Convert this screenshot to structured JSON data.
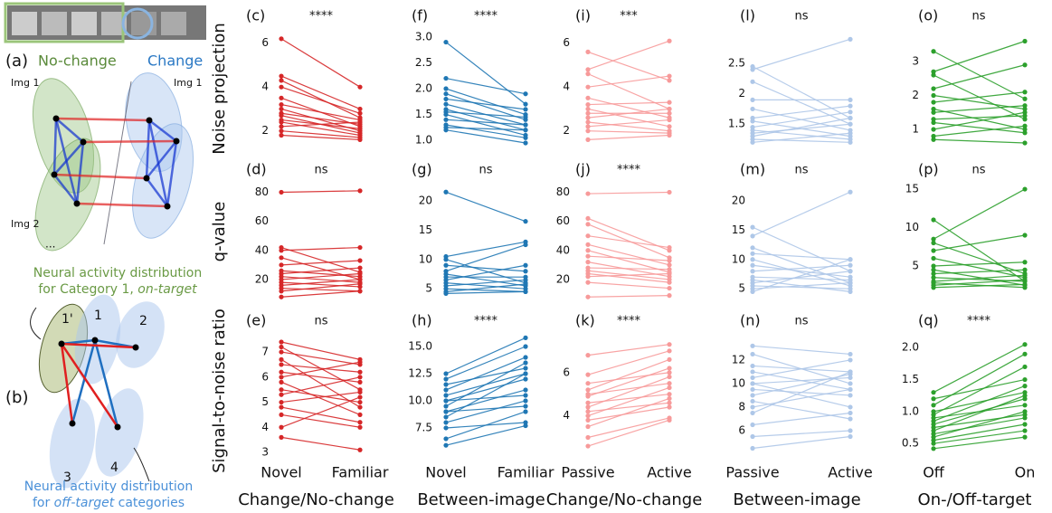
{
  "diagram": {
    "label_a": "(a)",
    "no_change": "No-change",
    "change": "Change",
    "img1_left": "Img 1",
    "img1_right": "Img 1",
    "img2": "Img 2",
    "ellipsis": "...",
    "on_target_line1": "Neural activity distribution",
    "on_target_line2_prefix": "for Category 1, ",
    "on_target_line2_emph": "on-target",
    "label_b": "(b)",
    "node_1p": "1'",
    "node_1": "1",
    "node_2": "2",
    "node_3": "3",
    "node_4": "4",
    "off_target_line1": "Neural activity distribution",
    "off_target_line2_prefix": "for ",
    "off_target_line2_emph": "off-target",
    "off_target_line2_suffix": " categories"
  },
  "chart_data": [
    {
      "type": "paired",
      "panel": "(c)",
      "significance": "****",
      "ylabel": "Noise projection",
      "color": "#d62728",
      "ylim": [
        1.45,
        6.4
      ],
      "yticks": [
        2,
        4,
        6
      ],
      "pairs": [
        [
          6.2,
          4.0
        ],
        [
          4.5,
          3.0
        ],
        [
          4.3,
          2.6
        ],
        [
          4.0,
          2.8
        ],
        [
          3.5,
          2.2
        ],
        [
          3.2,
          2.5
        ],
        [
          3.0,
          2.0
        ],
        [
          2.8,
          2.3
        ],
        [
          2.7,
          1.9
        ],
        [
          2.5,
          2.1
        ],
        [
          2.4,
          1.8
        ],
        [
          2.2,
          2.4
        ],
        [
          2.0,
          1.7
        ],
        [
          1.8,
          1.6
        ]
      ]
    },
    {
      "type": "paired",
      "panel": "(f)",
      "significance": "****",
      "color": "#1f77b4",
      "ylim": [
        0.95,
        3.05
      ],
      "yticks": [
        {
          "value": 1,
          "label": "1.0"
        },
        {
          "value": 1.5,
          "label": "1.5"
        },
        {
          "value": 2,
          "label": "2.0"
        },
        {
          "value": 2.5,
          "label": "2.5"
        },
        {
          "value": 3,
          "label": "3.0"
        }
      ],
      "pairs": [
        [
          2.9,
          1.7
        ],
        [
          2.2,
          1.9
        ],
        [
          2.0,
          1.5
        ],
        [
          1.9,
          1.4
        ],
        [
          1.8,
          1.6
        ],
        [
          1.7,
          1.3
        ],
        [
          1.6,
          1.2
        ],
        [
          1.55,
          1.45
        ],
        [
          1.5,
          1.1
        ],
        [
          1.4,
          1.3
        ],
        [
          1.3,
          1.05
        ],
        [
          1.25,
          1.2
        ],
        [
          1.2,
          0.95
        ]
      ]
    },
    {
      "type": "paired",
      "panel": "(i)",
      "significance": "***",
      "color": "#f79a9a",
      "ylim": [
        1.45,
        6.4
      ],
      "yticks": [
        2,
        4,
        6
      ],
      "pairs": [
        [
          5.6,
          4.3
        ],
        [
          4.8,
          6.1
        ],
        [
          4.6,
          3.0
        ],
        [
          4.0,
          4.5
        ],
        [
          3.5,
          2.6
        ],
        [
          3.2,
          3.3
        ],
        [
          3.0,
          2.2
        ],
        [
          2.8,
          2.8
        ],
        [
          2.6,
          3.0
        ],
        [
          2.4,
          2.0
        ],
        [
          2.2,
          2.5
        ],
        [
          2.0,
          1.9
        ],
        [
          1.6,
          1.8
        ]
      ]
    },
    {
      "type": "paired",
      "panel": "(l)",
      "significance": "ns",
      "color": "#aec7e8",
      "ylim": [
        1.19,
        2.98
      ],
      "yticks": [
        1.5,
        2,
        2.5
      ],
      "pairs": [
        [
          2.45,
          1.6
        ],
        [
          2.4,
          2.9
        ],
        [
          2.2,
          1.5
        ],
        [
          1.9,
          1.9
        ],
        [
          1.75,
          1.4
        ],
        [
          1.6,
          1.8
        ],
        [
          1.55,
          1.3
        ],
        [
          1.45,
          1.7
        ],
        [
          1.4,
          1.25
        ],
        [
          1.35,
          1.5
        ],
        [
          1.3,
          1.6
        ],
        [
          1.25,
          1.2
        ],
        [
          1.2,
          1.35
        ]
      ]
    },
    {
      "type": "paired",
      "panel": "(o)",
      "significance": "ns",
      "color": "#2ca02c",
      "ylim": [
        0.6,
        3.8
      ],
      "yticks": [
        1,
        2,
        3
      ],
      "pairs": [
        [
          3.3,
          1.9
        ],
        [
          2.7,
          3.6
        ],
        [
          2.6,
          1.3
        ],
        [
          2.2,
          2.9
        ],
        [
          2.0,
          1.6
        ],
        [
          1.8,
          2.1
        ],
        [
          1.6,
          1.0
        ],
        [
          1.5,
          1.7
        ],
        [
          1.3,
          1.4
        ],
        [
          1.2,
          0.9
        ],
        [
          1.0,
          1.5
        ],
        [
          0.8,
          1.1
        ],
        [
          0.7,
          0.6
        ]
      ]
    },
    {
      "type": "paired",
      "panel": "(d)",
      "significance": "ns",
      "ylabel": "q-value",
      "color": "#d62728",
      "ylim": [
        10,
        89
      ],
      "yticks": [
        20,
        40,
        60,
        80
      ],
      "pairs": [
        [
          80,
          81
        ],
        [
          42,
          25
        ],
        [
          40,
          42
        ],
        [
          35,
          20
        ],
        [
          30,
          33
        ],
        [
          26,
          22
        ],
        [
          24,
          28
        ],
        [
          22,
          18
        ],
        [
          20,
          24
        ],
        [
          18,
          15
        ],
        [
          16,
          20
        ],
        [
          14,
          12
        ],
        [
          12,
          17
        ],
        [
          8,
          12
        ]
      ]
    },
    {
      "type": "paired",
      "panel": "(g)",
      "significance": "ns",
      "color": "#1f77b4",
      "ylim": [
        4.1,
        23.7
      ],
      "yticks": [
        5,
        10,
        15,
        20
      ],
      "pairs": [
        [
          21.5,
          16.5
        ],
        [
          10.5,
          13
        ],
        [
          10,
          6
        ],
        [
          9,
          8
        ],
        [
          8,
          12.5
        ],
        [
          7.5,
          5.5
        ],
        [
          7,
          7
        ],
        [
          6.5,
          9
        ],
        [
          6,
          5
        ],
        [
          5.5,
          6.5
        ],
        [
          5,
          4.5
        ],
        [
          4.5,
          5.8
        ],
        [
          4.2,
          4.5
        ]
      ]
    },
    {
      "type": "paired",
      "panel": "(j)",
      "significance": "****",
      "color": "#f79a9a",
      "ylim": [
        10,
        89
      ],
      "yticks": [
        20,
        40,
        60,
        80
      ],
      "pairs": [
        [
          79,
          80
        ],
        [
          62,
          40
        ],
        [
          58,
          35
        ],
        [
          50,
          42
        ],
        [
          44,
          30
        ],
        [
          40,
          25
        ],
        [
          36,
          33
        ],
        [
          32,
          22
        ],
        [
          28,
          27
        ],
        [
          26,
          20
        ],
        [
          24,
          18
        ],
        [
          22,
          24
        ],
        [
          18,
          14
        ],
        [
          8,
          9
        ]
      ]
    },
    {
      "type": "paired",
      "panel": "(m)",
      "significance": "ns",
      "color": "#aec7e8",
      "ylim": [
        4.1,
        23.7
      ],
      "yticks": [
        5,
        10,
        15,
        20
      ],
      "pairs": [
        [
          15.5,
          8
        ],
        [
          14,
          21.5
        ],
        [
          12,
          6
        ],
        [
          11,
          10
        ],
        [
          10,
          5.5
        ],
        [
          9,
          7
        ],
        [
          8,
          9
        ],
        [
          7,
          6.5
        ],
        [
          6.5,
          4.5
        ],
        [
          6,
          8
        ],
        [
          5.5,
          5
        ],
        [
          5,
          6
        ],
        [
          4.5,
          10
        ]
      ]
    },
    {
      "type": "paired",
      "panel": "(p)",
      "significance": "ns",
      "color": "#2ca02c",
      "ylim": [
        1.35,
        16.3
      ],
      "yticks": [
        5,
        10,
        15
      ],
      "pairs": [
        [
          11,
          3
        ],
        [
          8.5,
          15
        ],
        [
          8,
          4
        ],
        [
          7,
          9
        ],
        [
          6,
          3.5
        ],
        [
          5,
          5.5
        ],
        [
          4.5,
          2.5
        ],
        [
          4,
          4.5
        ],
        [
          3.5,
          3
        ],
        [
          3,
          3.8
        ],
        [
          2.8,
          2.2
        ],
        [
          2.5,
          3.2
        ],
        [
          2.2,
          2.6
        ]
      ]
    },
    {
      "type": "paired",
      "panel": "(e)",
      "significance": "ns",
      "ylabel": "Signal-to-noise ratio",
      "xlabel": "Change/No-change",
      "categories": [
        "Novel",
        "Familiar"
      ],
      "color": "#d62728",
      "ylim": [
        2.82,
        7.76
      ],
      "yticks": [
        3,
        4,
        5,
        6,
        7
      ],
      "pairs": [
        [
          7.4,
          6.7
        ],
        [
          7.2,
          5.5
        ],
        [
          7.0,
          6.5
        ],
        [
          6.7,
          4.8
        ],
        [
          6.5,
          6.2
        ],
        [
          6.2,
          5.8
        ],
        [
          6.0,
          6.6
        ],
        [
          5.8,
          4.5
        ],
        [
          5.5,
          5.0
        ],
        [
          5.3,
          6.0
        ],
        [
          5.0,
          5.4
        ],
        [
          4.8,
          4.2
        ],
        [
          4.5,
          4.0
        ],
        [
          4.0,
          5.2
        ],
        [
          3.6,
          3.1
        ]
      ]
    },
    {
      "type": "paired",
      "panel": "(h)",
      "significance": "****",
      "xlabel": "Between-image",
      "categories": [
        "Novel",
        "Familiar"
      ],
      "color": "#1f77b4",
      "ylim": [
        4.83,
        16.25
      ],
      "yticks": [
        7.5,
        {
          "value": 10,
          "label": "10.0"
        },
        12.5,
        {
          "value": 15,
          "label": "15.0"
        }
      ],
      "pairs": [
        [
          12.5,
          15.8
        ],
        [
          12,
          15
        ],
        [
          11.5,
          13
        ],
        [
          11,
          14
        ],
        [
          10.5,
          12.5
        ],
        [
          10,
          12
        ],
        [
          10,
          10.5
        ],
        [
          9.5,
          13.5
        ],
        [
          9,
          11
        ],
        [
          9,
          9.5
        ],
        [
          8.5,
          12.5
        ],
        [
          8,
          10
        ],
        [
          7.5,
          8
        ],
        [
          6.5,
          9
        ],
        [
          5.9,
          7.7
        ]
      ]
    },
    {
      "type": "paired",
      "panel": "(k)",
      "significance": "****",
      "xlabel": "Change/No-change",
      "categories": [
        "Passive",
        "Active"
      ],
      "color": "#f79a9a",
      "ylim": [
        2.1,
        7.83
      ],
      "yticks": [
        4,
        6
      ],
      "pairs": [
        [
          6.8,
          7.3
        ],
        [
          5.9,
          7.0
        ],
        [
          5.5,
          6.0
        ],
        [
          5.2,
          6.6
        ],
        [
          5.0,
          5.5
        ],
        [
          4.9,
          6.2
        ],
        [
          4.6,
          5.0
        ],
        [
          4.4,
          5.8
        ],
        [
          4.2,
          4.6
        ],
        [
          4.0,
          5.3
        ],
        [
          3.8,
          4.4
        ],
        [
          3.5,
          4.8
        ],
        [
          3.0,
          3.9
        ],
        [
          2.6,
          3.8
        ]
      ]
    },
    {
      "type": "paired",
      "panel": "(n)",
      "significance": "ns",
      "xlabel": "Between-image",
      "categories": [
        "Passive",
        "Active"
      ],
      "color": "#aec7e8",
      "ylim": [
        3.77,
        14.3
      ],
      "yticks": [
        6,
        8,
        10,
        12
      ],
      "pairs": [
        [
          13.2,
          12.5
        ],
        [
          12.5,
          10
        ],
        [
          11.5,
          11
        ],
        [
          11,
          9.5
        ],
        [
          10.5,
          12
        ],
        [
          10,
          8
        ],
        [
          10,
          10.5
        ],
        [
          9.5,
          9
        ],
        [
          9,
          10.8
        ],
        [
          8.5,
          7
        ],
        [
          8,
          9.5
        ],
        [
          7.5,
          11
        ],
        [
          6.5,
          7.5
        ],
        [
          5.5,
          6
        ],
        [
          4.5,
          5.5
        ]
      ]
    },
    {
      "type": "paired",
      "panel": "(q)",
      "significance": "****",
      "xlabel": "On-/Off-target",
      "categories": [
        "Off",
        "On"
      ],
      "color": "#2ca02c",
      "ylim": [
        0.29,
        2.23
      ],
      "yticks": [
        0.5,
        {
          "value": 1,
          "label": "1.0"
        },
        1.5,
        {
          "value": 2,
          "label": "2.0"
        }
      ],
      "pairs": [
        [
          1.3,
          2.05
        ],
        [
          1.2,
          1.5
        ],
        [
          1.1,
          1.9
        ],
        [
          1.0,
          1.3
        ],
        [
          0.95,
          1.7
        ],
        [
          0.9,
          1.1
        ],
        [
          0.85,
          1.4
        ],
        [
          0.8,
          1.2
        ],
        [
          0.75,
          0.95
        ],
        [
          0.7,
          1.25
        ],
        [
          0.65,
          0.9
        ],
        [
          0.6,
          1.0
        ],
        [
          0.55,
          0.8
        ],
        [
          0.5,
          0.7
        ],
        [
          0.42,
          0.6
        ]
      ]
    }
  ]
}
